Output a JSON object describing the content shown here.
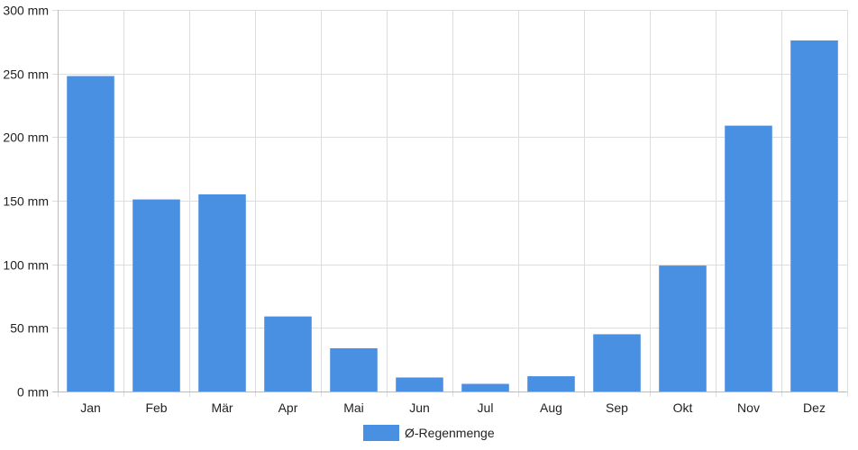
{
  "chart_data": {
    "type": "bar",
    "title": "",
    "xlabel": "",
    "ylabel": "",
    "categories": [
      "Jan",
      "Feb",
      "Mär",
      "Apr",
      "Mai",
      "Jun",
      "Jul",
      "Aug",
      "Sep",
      "Okt",
      "Nov",
      "Dez"
    ],
    "series": [
      {
        "name": "Ø-Regenmenge",
        "color": "#4a90e2",
        "values": [
          248,
          151,
          155,
          59,
          34,
          11,
          6,
          12,
          45,
          99,
          209,
          276
        ]
      }
    ],
    "ylim": [
      0,
      300
    ],
    "y_ticks": [
      0,
      50,
      100,
      150,
      200,
      250,
      300
    ],
    "y_tick_labels": [
      "0 mm",
      "50 mm",
      "100 mm",
      "150 mm",
      "200 mm",
      "250 mm",
      "300 mm"
    ],
    "grid": true,
    "legend_position": "bottom-center"
  },
  "colors": {
    "bar": "#4a90e2",
    "grid": "#dddddd",
    "axis": "#bbbbbb",
    "text": "#222222"
  }
}
